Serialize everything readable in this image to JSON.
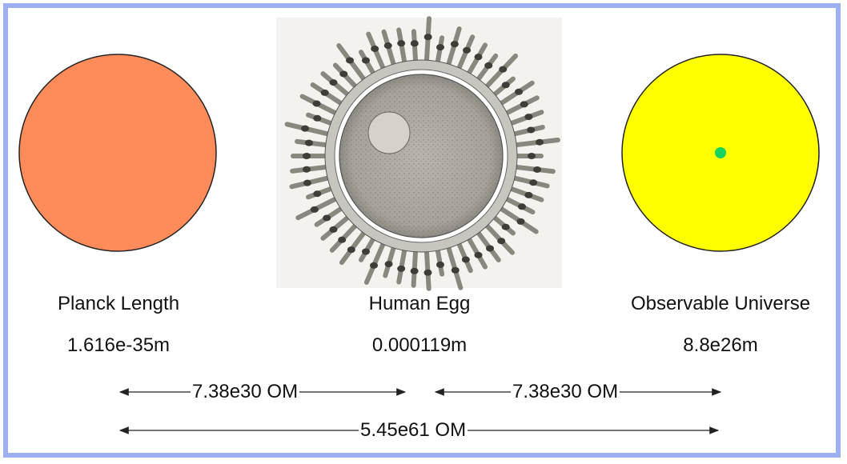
{
  "objects": [
    {
      "name": "Planck Length",
      "size": "1.616e-35m"
    },
    {
      "name": "Human Egg",
      "size": "0.000119m"
    },
    {
      "name": "Observable Universe",
      "size": "8.8e26m"
    }
  ],
  "arrows": {
    "left": "7.38e30 OM",
    "right": "7.38e30 OM",
    "total": "5.45e61 OM"
  },
  "colors": {
    "planck_fill": "#fe8c5b",
    "universe_fill": "#ffff00",
    "universe_dot": "#19d45c",
    "frame": "#9db1f2"
  }
}
